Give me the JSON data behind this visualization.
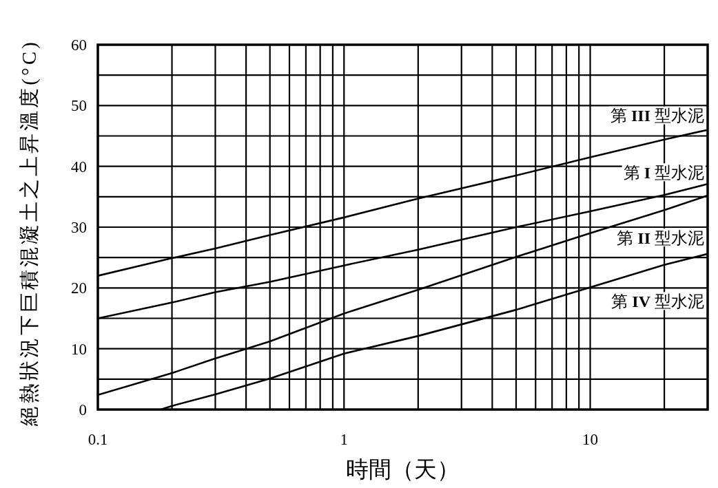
{
  "chart_data": {
    "type": "line",
    "xlabel": "時間（天）",
    "ylabel": "絕熱狀況下巨積混凝土之上昇溫度(°C)",
    "log": "x",
    "grid": true,
    "line_style": "solid",
    "xlim": [
      0.1,
      30
    ],
    "xticks": [
      0.1,
      {
        "value": 0.2,
        "label": null
      },
      {
        "value": 0.3,
        "label": null
      },
      {
        "value": 0.4,
        "label": null
      },
      {
        "value": 0.5,
        "label": null
      },
      {
        "value": 0.6,
        "label": null
      },
      {
        "value": 0.7,
        "label": null
      },
      {
        "value": 0.8,
        "label": null
      },
      {
        "value": 0.9,
        "label": null
      },
      1,
      {
        "value": 2,
        "label": null
      },
      {
        "value": 3,
        "label": null
      },
      {
        "value": 4,
        "label": null
      },
      {
        "value": 5,
        "label": null
      },
      {
        "value": 6,
        "label": null
      },
      {
        "value": 7,
        "label": null
      },
      {
        "value": 8,
        "label": null
      },
      {
        "value": 9,
        "label": null
      },
      10,
      {
        "value": 20,
        "label": null
      }
    ],
    "ylim": [
      0,
      60
    ],
    "yticks": [
      0,
      {
        "value": 5,
        "label": null
      },
      10,
      {
        "value": 15,
        "label": null
      },
      20,
      {
        "value": 25,
        "label": null
      },
      30,
      {
        "value": 35,
        "label": null
      },
      40,
      {
        "value": 45,
        "label": null
      },
      50,
      {
        "value": 55,
        "label": null
      },
      60
    ],
    "x": [
      0.1,
      0.2,
      0.3,
      0.5,
      1,
      2,
      5,
      10,
      20,
      30
    ],
    "series": [
      {
        "name": "第 I 型水泥",
        "color": "#000000",
        "values": [
          15.0,
          17.6,
          19.3,
          21.0,
          23.7,
          26.3,
          30.0,
          32.6,
          35.3,
          37.1
        ]
      },
      {
        "name": "第 II 型水泥",
        "color": "#000000",
        "values": [
          2.4,
          6.0,
          8.4,
          11.2,
          15.8,
          19.7,
          25.1,
          29.0,
          32.8,
          35.2
        ]
      },
      {
        "name": "第 III 型水泥",
        "color": "#000000",
        "values": [
          22.0,
          24.9,
          26.5,
          28.7,
          31.6,
          34.7,
          38.5,
          41.5,
          44.4,
          46.0
        ]
      },
      {
        "name": "第 IV 型水泥",
        "color": "#000000",
        "x": [
          0.18,
          0.2,
          0.3,
          0.5,
          1,
          2,
          5,
          10,
          20,
          30
        ],
        "values": [
          0,
          0.6,
          2.5,
          5.1,
          9.2,
          12.1,
          16.4,
          20.1,
          23.8,
          25.6
        ]
      }
    ]
  }
}
